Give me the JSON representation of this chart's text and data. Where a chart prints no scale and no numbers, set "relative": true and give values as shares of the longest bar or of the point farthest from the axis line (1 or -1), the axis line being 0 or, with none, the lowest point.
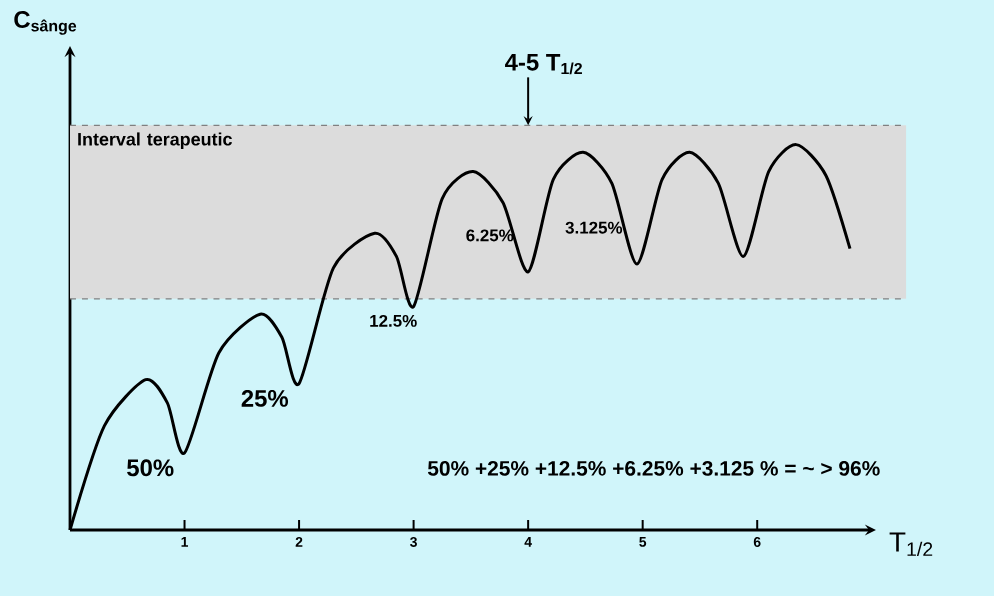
{
  "chart_data": {
    "type": "line",
    "relative": true,
    "ylabel": "C$_{sânge}$",
    "xlabel": "T$_{1/2}$",
    "x": [
      0,
      0.3,
      0.66,
      0.85,
      1.0,
      1.3,
      1.66,
      1.85,
      2.0,
      2.3,
      2.66,
      2.85,
      3.0,
      3.25,
      3.52,
      3.78,
      4.0,
      4.22,
      4.48,
      4.73,
      4.95,
      5.17,
      5.41,
      5.66,
      5.88,
      6.1,
      6.34,
      6.6,
      6.81
    ],
    "series": [
      {
        "color": "#000000",
        "values": [
          0,
          0.27,
          0.39,
          0.33,
          0.2,
          0.46,
          0.56,
          0.5,
          0.38,
          0.68,
          0.77,
          0.71,
          0.58,
          0.86,
          0.93,
          0.85,
          0.67,
          0.91,
          0.98,
          0.9,
          0.69,
          0.91,
          0.98,
          0.9,
          0.71,
          0.93,
          1.0,
          0.92,
          0.73
        ]
      }
    ],
    "xlim": [
      0,
      6.95
    ],
    "xticks": [
      1,
      2,
      3,
      4,
      5,
      6
    ],
    "bands": [
      {
        "axis": "y",
        "from": 0.6,
        "to": 1.05,
        "label": "Interval terapeutic",
        "color": "#dcdcdc"
      }
    ],
    "ref_lines": [
      {
        "axis": "y",
        "value": 0.6,
        "color": "#808080",
        "line_style": "dashed"
      },
      {
        "axis": "y",
        "value": 1.05,
        "color": "#808080",
        "line_style": "dashed"
      }
    ],
    "annotations": [
      "50%",
      "25%",
      "12.5%",
      "6.25%",
      "3.125%",
      {
        "text": "4-5 T$_{1/2}$",
        "x": 4,
        "y": 1.05
      },
      "50% +25% +12.5% +6.25% +3.125 % = ~ > 96%"
    ]
  }
}
